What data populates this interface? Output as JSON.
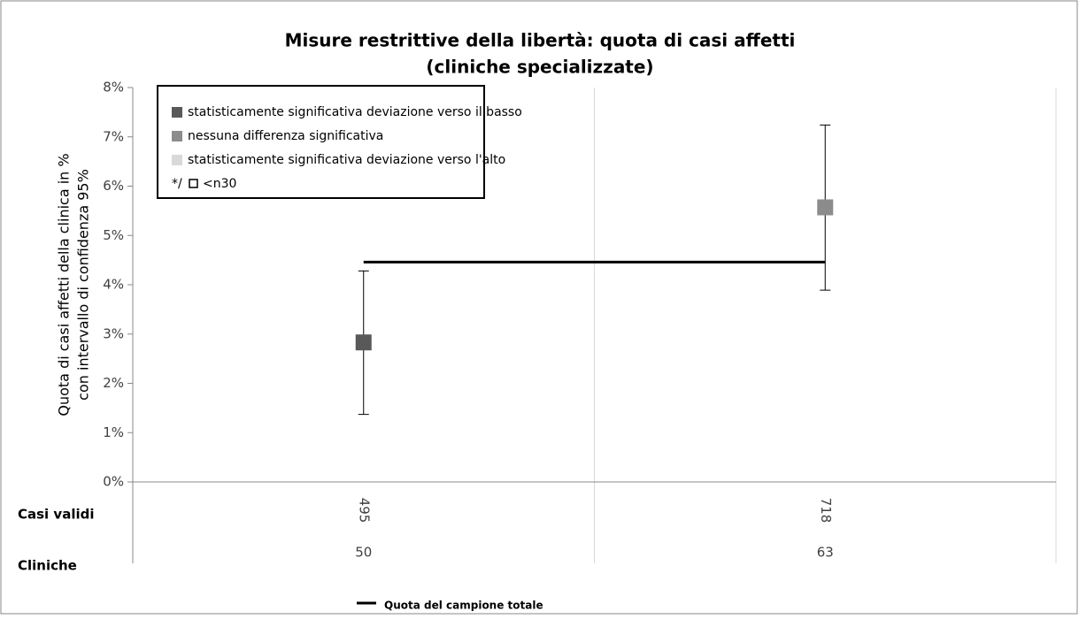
{
  "chart_data": {
    "type": "errorbar",
    "title": [
      "Misure restrittive della libertà: quota di casi affetti",
      "(cliniche specializzate)"
    ],
    "y_label": [
      "Quota di casi affetti della clinica in %",
      "con intervallo di confidenza 95%"
    ],
    "categories": [
      495,
      718
    ],
    "values": [
      2.83,
      5.57
    ],
    "lower": [
      1.37,
      3.89
    ],
    "upper": [
      4.28,
      7.24
    ],
    "colors": [
      "#595959",
      "#8c8c8c"
    ],
    "ylim": [
      0,
      8
    ],
    "yticks": [
      {
        "value": 0,
        "label": "0%"
      },
      {
        "value": 1,
        "label": "1%"
      },
      {
        "value": 2,
        "label": "2%"
      },
      {
        "value": 3,
        "label": "3%"
      },
      {
        "value": 4,
        "label": "4%"
      },
      {
        "value": 5,
        "label": "5%"
      },
      {
        "value": 6,
        "label": "6%"
      },
      {
        "value": 7,
        "label": "7%"
      },
      {
        "value": 8,
        "label": "8%"
      }
    ],
    "reference": {
      "name": "Quota del campione totale",
      "value": 4.46,
      "color": "#000000"
    },
    "legend": [
      {
        "label": "statisticamente significativa deviazione verso il basso",
        "color": "#595959"
      },
      {
        "label": "nessuna differenza significativa",
        "color": "#8c8c8c"
      },
      {
        "label": "statisticamente significativa deviazione verso l'alto",
        "color": "#d9d9d9"
      }
    ],
    "legend_note": {
      "prefix": "*/",
      "label": "<n30"
    },
    "table": {
      "rows": [
        {
          "label": "Casi validi",
          "values": [
            495,
            718
          ]
        },
        {
          "label": "Cliniche",
          "values": [
            50,
            63
          ]
        }
      ]
    }
  }
}
